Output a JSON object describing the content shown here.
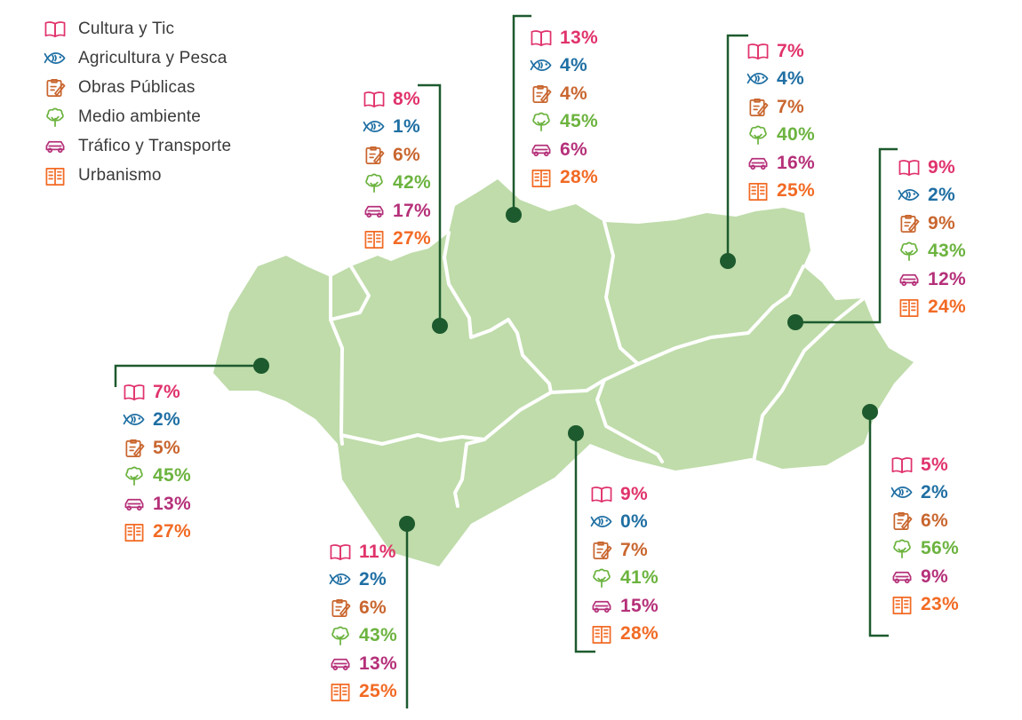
{
  "colors": {
    "land": "#bfdcaa",
    "border": "#ffffff",
    "leader": "#1d5a2e",
    "categories": {
      "cultura": "#e0336b",
      "agricultura": "#1f6fa3",
      "obras": "#c9662f",
      "medio": "#6cb33f",
      "trafico": "#b53079",
      "urbanismo": "#f26a24"
    }
  },
  "legend": [
    {
      "key": "cultura",
      "label": "Cultura y Tic",
      "icon": "book-icon"
    },
    {
      "key": "agricultura",
      "label": "Agricultura y Pesca",
      "icon": "fish-icon"
    },
    {
      "key": "obras",
      "label": "Obras Públicas",
      "icon": "clipboard-pencil-icon"
    },
    {
      "key": "medio",
      "label": "Medio ambiente",
      "icon": "tree-icon"
    },
    {
      "key": "trafico",
      "label": "Tráfico y Transporte",
      "icon": "car-icon"
    },
    {
      "key": "urbanismo",
      "label": "Urbanismo",
      "icon": "building-icon"
    }
  ],
  "provinces": [
    {
      "id": "huelva",
      "stats": [
        "7%",
        "2%",
        "5%",
        "45%",
        "13%",
        "27%"
      ]
    },
    {
      "id": "sevilla",
      "stats": [
        "8%",
        "1%",
        "6%",
        "42%",
        "17%",
        "27%"
      ]
    },
    {
      "id": "cordoba",
      "stats": [
        "13%",
        "4%",
        "4%",
        "45%",
        "6%",
        "28%"
      ]
    },
    {
      "id": "jaen",
      "stats": [
        "7%",
        "4%",
        "7%",
        "40%",
        "16%",
        "25%"
      ]
    },
    {
      "id": "granada",
      "stats": [
        "9%",
        "2%",
        "9%",
        "43%",
        "12%",
        "24%"
      ]
    },
    {
      "id": "almeria",
      "stats": [
        "5%",
        "2%",
        "6%",
        "56%",
        "9%",
        "23%"
      ]
    },
    {
      "id": "malaga",
      "stats": [
        "9%",
        "0%",
        "7%",
        "41%",
        "15%",
        "28%"
      ]
    },
    {
      "id": "cadiz",
      "stats": [
        "11%",
        "2%",
        "6%",
        "43%",
        "13%",
        "25%"
      ]
    }
  ]
}
